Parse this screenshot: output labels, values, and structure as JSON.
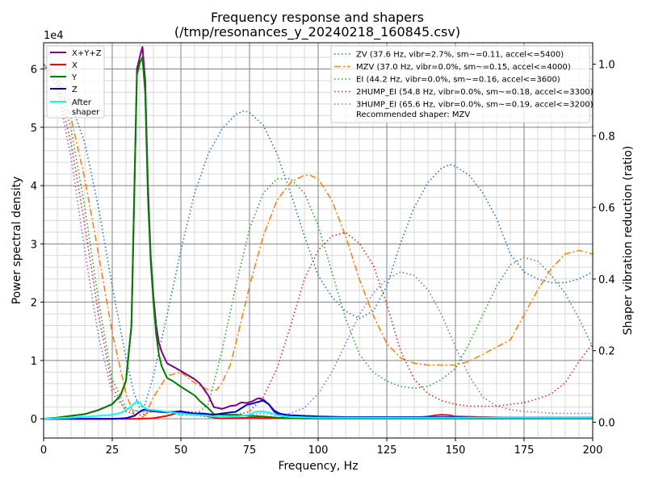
{
  "chart_data": {
    "type": "line",
    "title": "Frequency response and shapers",
    "subtitle": "(/tmp/resonances_y_20240218_160845.csv)",
    "xlabel": "Frequency, Hz",
    "ylabel": "Power spectral density",
    "y2label": "Shaper vibration reduction (ratio)",
    "y_offset_text": "1e4",
    "xlim": [
      0,
      200
    ],
    "ylim": [
      -3300,
      64500
    ],
    "y2lim": [
      -0.044,
      1.06
    ],
    "x_ticks": [
      0,
      25,
      50,
      75,
      100,
      125,
      150,
      175,
      200
    ],
    "x_tick_labels": [
      "0",
      "25",
      "50",
      "75",
      "100",
      "125",
      "150",
      "175",
      "200"
    ],
    "y_ticks": [
      0,
      10000,
      20000,
      30000,
      40000,
      50000,
      60000
    ],
    "y_tick_labels": [
      "0",
      "1",
      "2",
      "3",
      "4",
      "5",
      "6"
    ],
    "y2_ticks": [
      0,
      0.2,
      0.4,
      0.6,
      0.8,
      1.0
    ],
    "y2_tick_labels": [
      "0.0",
      "0.2",
      "0.4",
      "0.6",
      "0.8",
      "1.0"
    ],
    "x_major_step": 25,
    "x_minor_step": 5,
    "y_major_step": 10000,
    "y_minor_step": 2000,
    "psd_series": [
      {
        "name": "X+Y+Z",
        "color": "#800080",
        "width": 2,
        "x": [
          0,
          5,
          10,
          15,
          20,
          25,
          28,
          30,
          32,
          33,
          34,
          35,
          36,
          37,
          38,
          39,
          40,
          41,
          42,
          43,
          44,
          45,
          47,
          50,
          55,
          57,
          60,
          62,
          65,
          68,
          70,
          72,
          74,
          76,
          78,
          79,
          80,
          82,
          84,
          86,
          88,
          90,
          95,
          100,
          110,
          120,
          130,
          135,
          140,
          145,
          150,
          160,
          170,
          180,
          190,
          200
        ],
        "y": [
          0,
          200,
          500,
          800,
          1500,
          2500,
          4000,
          6500,
          16000,
          38000,
          60000,
          62000,
          63800,
          58000,
          40000,
          28000,
          21000,
          16000,
          13000,
          11500,
          10500,
          9500,
          9000,
          8200,
          6800,
          6000,
          4000,
          2000,
          1700,
          2200,
          2300,
          2800,
          2700,
          3000,
          3500,
          3500,
          3300,
          2500,
          1200,
          600,
          300,
          200,
          200,
          200,
          200,
          200,
          300,
          200,
          300,
          200,
          200,
          200,
          200,
          200,
          200,
          200
        ]
      },
      {
        "name": "X",
        "color": "#ff0000",
        "width": 2,
        "x": [
          0,
          10,
          20,
          30,
          35,
          40,
          45,
          48,
          50,
          52,
          55,
          58,
          60,
          62,
          65,
          70,
          75,
          80,
          85,
          90,
          100,
          110,
          120,
          130,
          135,
          140,
          143,
          145,
          148,
          150,
          160,
          170,
          180,
          190,
          200
        ],
        "y": [
          0,
          0,
          0,
          0,
          0,
          100,
          500,
          900,
          1200,
          1100,
          900,
          700,
          400,
          200,
          100,
          100,
          200,
          100,
          100,
          100,
          200,
          200,
          300,
          300,
          200,
          400,
          600,
          700,
          600,
          400,
          300,
          200,
          200,
          200,
          200
        ]
      },
      {
        "name": "Y",
        "color": "#008000",
        "width": 2,
        "x": [
          0,
          5,
          10,
          15,
          20,
          25,
          28,
          30,
          32,
          33,
          34,
          35,
          36,
          37,
          38,
          39,
          40,
          41,
          42,
          43,
          44,
          45,
          47,
          50,
          55,
          57,
          60,
          62,
          65,
          70,
          75,
          80,
          85,
          90,
          95,
          100,
          110,
          120,
          130,
          140,
          150,
          160,
          170,
          180,
          190,
          200
        ],
        "y": [
          0,
          200,
          500,
          800,
          1500,
          2500,
          4000,
          6500,
          16000,
          38000,
          59000,
          61000,
          62000,
          56000,
          38000,
          27000,
          20000,
          14500,
          11000,
          9000,
          8000,
          7000,
          6500,
          5500,
          4000,
          3000,
          1800,
          800,
          700,
          700,
          500,
          400,
          200,
          100,
          50,
          50,
          50,
          50,
          50,
          50,
          50,
          50,
          50,
          50,
          50,
          50
        ]
      },
      {
        "name": "Z",
        "color": "#0000cd",
        "width": 2,
        "x": [
          0,
          10,
          20,
          25,
          30,
          33,
          35,
          36,
          37,
          38,
          40,
          42,
          45,
          48,
          50,
          52,
          55,
          58,
          60,
          62,
          65,
          68,
          70,
          72,
          74,
          76,
          78,
          80,
          82,
          84,
          86,
          88,
          90,
          95,
          100,
          110,
          120,
          130,
          140,
          150,
          160,
          170,
          180,
          190,
          200
        ],
        "y": [
          0,
          0,
          0,
          0,
          100,
          500,
          1200,
          1500,
          1600,
          1500,
          1300,
          1200,
          1100,
          1200,
          1300,
          1100,
          900,
          900,
          800,
          700,
          900,
          1100,
          1200,
          1800,
          2400,
          2600,
          2900,
          3100,
          2500,
          1400,
          900,
          700,
          600,
          500,
          400,
          300,
          300,
          300,
          300,
          300,
          200,
          200,
          200,
          200,
          200
        ]
      },
      {
        "name": "After\nshaper",
        "color": "#00ffff",
        "width": 2,
        "x": [
          0,
          10,
          20,
          25,
          28,
          30,
          32,
          34,
          35,
          36,
          37,
          38,
          40,
          42,
          45,
          48,
          50,
          52,
          55,
          58,
          60,
          62,
          65,
          70,
          72,
          75,
          77,
          80,
          82,
          85,
          90,
          100,
          120,
          140,
          160,
          180,
          200
        ],
        "y": [
          0,
          200,
          500,
          700,
          1000,
          1500,
          2200,
          3000,
          2800,
          2200,
          1800,
          1600,
          1500,
          1400,
          1200,
          1000,
          900,
          800,
          700,
          600,
          500,
          400,
          300,
          400,
          500,
          700,
          1200,
          1300,
          1100,
          600,
          300,
          200,
          200,
          200,
          200,
          200,
          200
        ]
      }
    ],
    "shaper_series": [
      {
        "name": "ZV (37.6 Hz, vibr=2.7%, sm~=0.11, accel<=5400)",
        "color": "#1f77b4",
        "dash": "1.5,3",
        "x": [
          0,
          5,
          10,
          15,
          20,
          25,
          30,
          33,
          35,
          37,
          40,
          45,
          50,
          55,
          60,
          65,
          70,
          73,
          75,
          80,
          85,
          90,
          95,
          100,
          105,
          110,
          115,
          120,
          125,
          130,
          135,
          140,
          145,
          148,
          150,
          155,
          160,
          165,
          170,
          175,
          180,
          185,
          190,
          195,
          200
        ],
        "y": [
          1.0,
          0.965,
          0.89,
          0.78,
          0.6,
          0.38,
          0.18,
          0.08,
          0.04,
          0.05,
          0.13,
          0.3,
          0.48,
          0.64,
          0.75,
          0.82,
          0.86,
          0.87,
          0.865,
          0.83,
          0.75,
          0.64,
          0.52,
          0.41,
          0.35,
          0.31,
          0.29,
          0.31,
          0.38,
          0.5,
          0.6,
          0.67,
          0.71,
          0.72,
          0.715,
          0.69,
          0.64,
          0.57,
          0.47,
          0.42,
          0.4,
          0.39,
          0.39,
          0.4,
          0.42
        ]
      },
      {
        "name": "MZV (37.0 Hz, vibr=0.0%, sm~=0.15, accel<=4000)",
        "color": "#ff7f0e",
        "dash": "8,3,2,3",
        "x": [
          0,
          5,
          10,
          15,
          20,
          25,
          30,
          33,
          35,
          37,
          40,
          45,
          50,
          55,
          60,
          63,
          65,
          68,
          70,
          75,
          80,
          85,
          90,
          95,
          97,
          100,
          105,
          110,
          115,
          120,
          125,
          130,
          135,
          140,
          145,
          150,
          155,
          160,
          165,
          170,
          175,
          180,
          185,
          190,
          195,
          200
        ],
        "y": [
          1.0,
          0.96,
          0.85,
          0.68,
          0.47,
          0.25,
          0.08,
          0.02,
          0.01,
          0.02,
          0.07,
          0.13,
          0.14,
          0.11,
          0.09,
          0.09,
          0.11,
          0.16,
          0.22,
          0.38,
          0.52,
          0.62,
          0.67,
          0.69,
          0.69,
          0.68,
          0.62,
          0.52,
          0.4,
          0.3,
          0.22,
          0.18,
          0.165,
          0.16,
          0.16,
          0.16,
          0.17,
          0.19,
          0.21,
          0.23,
          0.3,
          0.37,
          0.43,
          0.47,
          0.48,
          0.47
        ]
      },
      {
        "name": "EI (44.2 Hz, vibr=0.0%, sm~=0.16, accel<=3600)",
        "color": "#2ca02c",
        "dash": "1.5,3",
        "x": [
          0,
          5,
          10,
          15,
          20,
          25,
          30,
          35,
          40,
          45,
          50,
          55,
          60,
          65,
          70,
          75,
          80,
          85,
          90,
          95,
          100,
          105,
          110,
          115,
          120,
          125,
          130,
          135,
          140,
          145,
          150,
          155,
          160,
          165,
          170,
          175,
          180,
          185,
          190,
          195,
          200
        ],
        "y": [
          1.0,
          0.95,
          0.82,
          0.6,
          0.34,
          0.12,
          0.04,
          0.03,
          0.03,
          0.03,
          0.02,
          0.02,
          0.05,
          0.2,
          0.38,
          0.54,
          0.64,
          0.68,
          0.68,
          0.64,
          0.55,
          0.42,
          0.29,
          0.19,
          0.14,
          0.115,
          0.1,
          0.095,
          0.1,
          0.12,
          0.15,
          0.22,
          0.3,
          0.38,
          0.44,
          0.46,
          0.45,
          0.41,
          0.36,
          0.29,
          0.21
        ]
      },
      {
        "name": "2HUMP_EI (54.8 Hz, vibr=0.0%, sm~=0.18, accel<=3300)",
        "color": "#d62728",
        "dash": "1.5,3",
        "x": [
          0,
          5,
          10,
          15,
          20,
          25,
          30,
          35,
          40,
          45,
          50,
          55,
          60,
          65,
          70,
          75,
          80,
          85,
          90,
          95,
          100,
          105,
          110,
          115,
          120,
          125,
          130,
          135,
          140,
          145,
          150,
          155,
          160,
          165,
          170,
          175,
          180,
          185,
          190,
          195,
          200
        ],
        "y": [
          1.0,
          0.94,
          0.78,
          0.55,
          0.3,
          0.1,
          0.03,
          0.02,
          0.03,
          0.03,
          0.03,
          0.02,
          0.015,
          0.015,
          0.02,
          0.03,
          0.07,
          0.15,
          0.27,
          0.4,
          0.48,
          0.52,
          0.53,
          0.5,
          0.44,
          0.33,
          0.2,
          0.12,
          0.08,
          0.06,
          0.05,
          0.045,
          0.045,
          0.045,
          0.05,
          0.055,
          0.065,
          0.08,
          0.11,
          0.17,
          0.22
        ]
      },
      {
        "name": "3HUMP_EI (65.6 Hz, vibr=0.0%, sm~=0.19, accel<=3200)",
        "color": "#9467bd",
        "dash": "1.5,3",
        "x": [
          0,
          5,
          10,
          15,
          20,
          25,
          30,
          35,
          40,
          45,
          50,
          55,
          60,
          65,
          70,
          75,
          80,
          85,
          90,
          95,
          100,
          105,
          110,
          115,
          120,
          125,
          130,
          135,
          140,
          145,
          150,
          155,
          160,
          165,
          170,
          175,
          180,
          185,
          190,
          195,
          200
        ],
        "y": [
          1.0,
          0.93,
          0.74,
          0.48,
          0.24,
          0.08,
          0.035,
          0.03,
          0.03,
          0.03,
          0.03,
          0.03,
          0.02,
          0.015,
          0.015,
          0.02,
          0.025,
          0.02,
          0.025,
          0.04,
          0.08,
          0.14,
          0.22,
          0.3,
          0.36,
          0.4,
          0.42,
          0.41,
          0.37,
          0.3,
          0.21,
          0.13,
          0.07,
          0.045,
          0.035,
          0.03,
          0.028,
          0.025,
          0.025,
          0.025,
          0.025
        ]
      }
    ],
    "psd_legend_location": "top-left",
    "shaper_legend_location": "top-right",
    "recommended_text": "Recommended shaper: MZV"
  }
}
